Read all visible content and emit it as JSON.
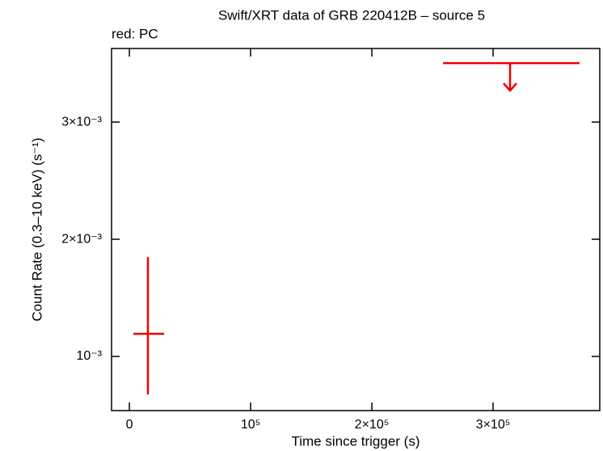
{
  "chart_data": {
    "type": "errorbar",
    "title": "Swift/XRT data of GRB 220412B – source 5",
    "legend_text": "red: PC",
    "x_label": "Time since trigger (s)",
    "y_label": "Count Rate (0.3–10 keV) (s⁻¹)",
    "xlim": [
      -14700,
      388000
    ],
    "ylim": [
      0.000538,
      0.003628
    ],
    "xticks": [
      0,
      {
        "value": 100000,
        "label": "10⁵"
      },
      {
        "value": 200000,
        "label": "2×10⁵"
      },
      {
        "value": 300000,
        "label": "3×10⁵"
      }
    ],
    "yticks": [
      {
        "value": 0.001,
        "label": "10⁻³"
      },
      {
        "value": 0.002,
        "label": "2×10⁻³"
      },
      {
        "value": 0.003,
        "label": "3×10⁻³"
      }
    ],
    "series": [
      {
        "name": "PC",
        "color": "#ee0000",
        "x": [
          15300
        ],
        "x_low": [
          3300
        ],
        "x_high": [
          28700
        ],
        "values": [
          0.001193
        ],
        "y_low": [
          0.000676
        ],
        "y_high": [
          0.001848
        ]
      }
    ],
    "upper_limits": {
      "color": "#ee0000",
      "x": [
        314000
      ],
      "x_low": [
        258700
      ],
      "x_high": [
        371300
      ],
      "values": [
        0.003503
      ]
    }
  }
}
